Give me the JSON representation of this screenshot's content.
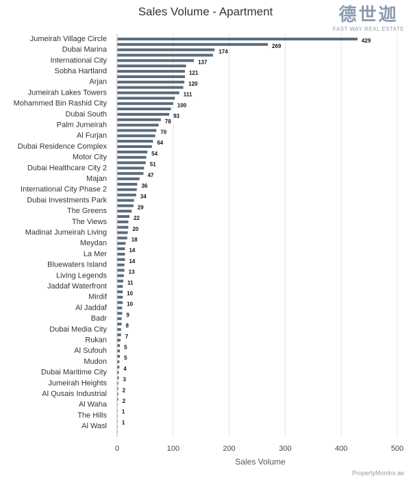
{
  "chart_data": {
    "type": "barh",
    "title": "Sales Volume - Apartment",
    "xlabel": "Sales Volume",
    "logo": {
      "name": "德世迦",
      "tagline": "FAST WAY REAL ESTATE"
    },
    "source": "PropertyMonitor.ae",
    "color": "#5b6b7a",
    "grid": true,
    "xlim": [
      0,
      500
    ],
    "xticks": [
      0,
      100,
      200,
      300,
      400,
      500
    ],
    "categories": [
      "Jumeirah Village Circle",
      null,
      "Dubai Marina",
      null,
      "International City",
      null,
      "Sobha Hartland",
      null,
      "Arjan",
      null,
      "Jumeirah Lakes Towers",
      null,
      "Mohammed Bin Rashid City",
      null,
      "Dubai South",
      null,
      "Palm Jumeirah",
      null,
      "Al Furjan",
      null,
      "Dubai Residence Complex",
      null,
      "Motor City",
      null,
      "Dubai Healthcare City 2",
      null,
      "Majan",
      null,
      "International City Phase 2",
      null,
      "Dubai Investments Park",
      null,
      "The Greens",
      null,
      "The Views",
      null,
      "Madinat Jumeirah Living",
      null,
      "Meydan",
      null,
      "La Mer",
      null,
      "Bluewaters Island",
      null,
      "Living Legends",
      null,
      "Jaddaf Waterfront",
      null,
      "Mirdif",
      null,
      "Al Jaddaf",
      null,
      "Badr",
      null,
      "Dubai Media City",
      null,
      "Rukan",
      null,
      "Al Sufouh",
      null,
      "Mudon",
      null,
      "Dubai Maritime City",
      null,
      "Jumeirah Heights",
      null,
      "Al Qusais Industrial",
      null,
      "Al Waha",
      null,
      "The Hills",
      null,
      "Al Wasl",
      null
    ],
    "values": [
      429,
      269,
      174,
      171,
      137,
      123,
      121,
      121,
      120,
      118,
      111,
      103,
      100,
      96,
      93,
      78,
      74,
      70,
      68,
      64,
      62,
      54,
      52,
      51,
      48,
      47,
      40,
      36,
      35,
      34,
      30,
      29,
      26,
      22,
      20,
      20,
      19,
      18,
      15,
      14,
      14,
      14,
      13,
      13,
      12,
      11,
      10,
      10,
      10,
      10,
      9,
      9,
      8,
      8,
      7,
      7,
      6,
      5,
      5,
      5,
      4,
      4,
      3,
      3,
      2,
      2,
      2,
      2,
      1,
      1,
      1,
      1,
      1,
      1
    ],
    "value_labels": [
      "429",
      "269",
      "174",
      null,
      "137",
      null,
      "121",
      null,
      "120",
      null,
      "111",
      null,
      "100",
      null,
      "93",
      "78",
      null,
      "70",
      null,
      "64",
      null,
      "54",
      null,
      "51",
      null,
      "47",
      null,
      "36",
      null,
      "34",
      null,
      "29",
      null,
      "22",
      null,
      "20",
      null,
      "18",
      null,
      "14",
      null,
      "14",
      null,
      "13",
      null,
      "11",
      null,
      "10",
      null,
      "10",
      null,
      "9",
      null,
      "8",
      null,
      "7",
      null,
      "5",
      null,
      "5",
      null,
      "4",
      null,
      "3",
      null,
      "2",
      null,
      "2",
      null,
      "1",
      null,
      "1",
      null,
      null
    ]
  }
}
